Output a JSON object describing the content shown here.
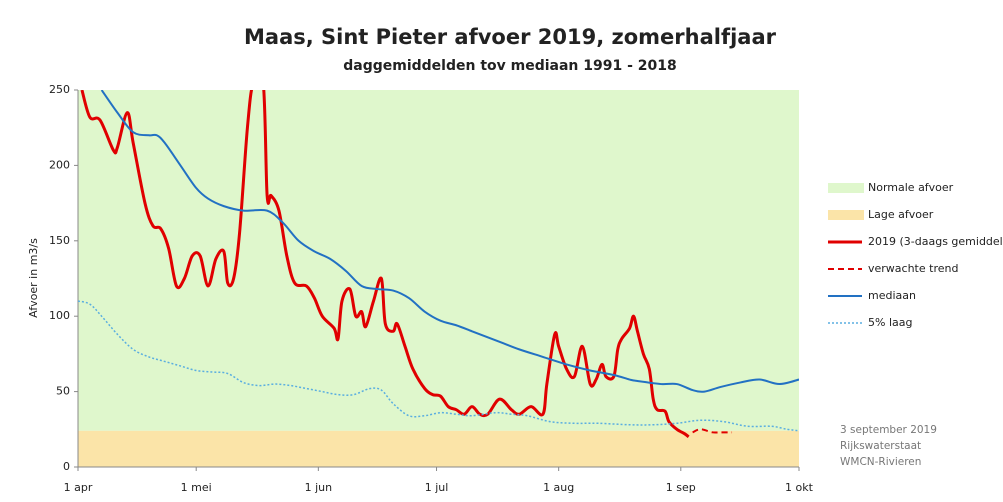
{
  "chart_data": {
    "type": "line",
    "title": "Maas, Sint Pieter afvoer 2019, zomerhalfjaar",
    "subtitle": "daggemiddelden tov  mediaan 1991 - 2018",
    "y_label": "Afvoer in m3/s",
    "xlim": [
      0,
      183
    ],
    "ylim": [
      0,
      250
    ],
    "xticks": [
      {
        "value": 0,
        "label": "1 apr"
      },
      {
        "value": 30,
        "label": "1 mei"
      },
      {
        "value": 61,
        "label": "1 jun"
      },
      {
        "value": 91,
        "label": "1 jul"
      },
      {
        "value": 122,
        "label": "1 aug"
      },
      {
        "value": 153,
        "label": "1 sep"
      },
      {
        "value": 183,
        "label": "1 okt"
      }
    ],
    "yticks": [
      0,
      50,
      100,
      150,
      200,
      250
    ],
    "legend": "right",
    "bands": [
      {
        "name": "Normale afvoer",
        "color": "#dff7cc",
        "from": 24,
        "to": 250
      },
      {
        "name": "Lage afvoer",
        "color": "#fbe4a8",
        "from": 0,
        "to": 24
      }
    ],
    "series": [
      {
        "name": "2019 (3-daags gemiddelde",
        "color": "#e00000",
        "style": "solid",
        "width": 3,
        "x": [
          1,
          3,
          5.6,
          9,
          10,
          12.5,
          14,
          17,
          19,
          21,
          23,
          25,
          27,
          29,
          31,
          33,
          35,
          37,
          38,
          39.5,
          41,
          43,
          44.5,
          47,
          48,
          49,
          51,
          53,
          55,
          58,
          60,
          62,
          65,
          66,
          67,
          69,
          70.5,
          72,
          73,
          75,
          77,
          78,
          80,
          81,
          83,
          85,
          88,
          90,
          92,
          94,
          96,
          98,
          100,
          102,
          104,
          107,
          110,
          112,
          115,
          118,
          119,
          121,
          122,
          124,
          126,
          128,
          130,
          131.5,
          133,
          134,
          136,
          137,
          138,
          140,
          141,
          142,
          143.5,
          145,
          146,
          147,
          149,
          150,
          152,
          154,
          155
        ],
        "values": [
          250,
          232,
          230,
          210,
          212,
          235,
          215,
          175,
          160,
          158,
          145,
          120,
          125,
          140,
          140,
          120,
          138,
          143,
          122,
          125,
          155,
          225,
          255,
          255,
          180,
          180,
          170,
          140,
          122,
          120,
          112,
          100,
          92,
          85,
          110,
          118,
          100,
          103,
          93,
          110,
          125,
          95,
          90,
          95,
          80,
          65,
          52,
          48,
          47,
          40,
          38,
          35,
          40,
          35,
          35,
          45,
          38,
          35,
          40,
          35,
          55,
          88,
          80,
          65,
          60,
          80,
          55,
          58,
          68,
          60,
          60,
          78,
          85,
          92,
          100,
          90,
          75,
          65,
          45,
          38,
          37,
          30,
          25,
          22,
          20
        ]
      },
      {
        "name": "verwachte trend",
        "color": "#e00000",
        "style": "dashed",
        "width": 2,
        "x": [
          156,
          158,
          161,
          163,
          166
        ],
        "values": [
          23,
          25,
          23,
          23,
          23
        ]
      },
      {
        "name": "mediaan",
        "color": "#2271c3",
        "style": "solid",
        "width": 2,
        "x": [
          6,
          10,
          14,
          18,
          20,
          22,
          26,
          30,
          33,
          37,
          42,
          48,
          52,
          56,
          60,
          64,
          68,
          72,
          76,
          80,
          84,
          88,
          92,
          96,
          100,
          104,
          108,
          112,
          118,
          124,
          130,
          136,
          140,
          142,
          148,
          152,
          156,
          159,
          163,
          168,
          173,
          178,
          183
        ],
        "values": [
          250,
          235,
          222,
          220,
          220,
          215,
          200,
          185,
          178,
          173,
          170,
          170,
          162,
          150,
          143,
          138,
          130,
          120,
          118,
          117,
          112,
          103,
          97,
          94,
          90,
          86,
          82,
          78,
          73,
          68,
          64,
          61,
          58,
          57,
          55,
          55,
          51,
          50,
          53,
          56,
          58,
          55,
          58
        ]
      },
      {
        "name": "5% laag",
        "color": "#5aaee0",
        "style": "dotted",
        "width": 1.5,
        "x": [
          0,
          3,
          6,
          10,
          14,
          18,
          22,
          26,
          30,
          34,
          38,
          42,
          46,
          50,
          54,
          58,
          62,
          66,
          70,
          74,
          77,
          80,
          84,
          88,
          92,
          96,
          100,
          106,
          110,
          114,
          120,
          126,
          132,
          140,
          146,
          152,
          158,
          164,
          170,
          176,
          180,
          183
        ],
        "values": [
          110,
          108,
          100,
          88,
          78,
          73,
          70,
          67,
          64,
          63,
          62,
          56,
          54,
          55,
          54,
          52,
          50,
          48,
          48,
          52,
          51,
          42,
          34,
          34,
          36,
          35,
          34,
          36,
          35,
          34,
          30,
          29,
          29,
          28,
          28,
          29,
          31,
          30,
          27,
          27,
          25,
          24
        ]
      }
    ],
    "annotations": [
      "3 september 2019",
      "Rijkswaterstaat",
      "WMCN-Rivieren"
    ]
  }
}
